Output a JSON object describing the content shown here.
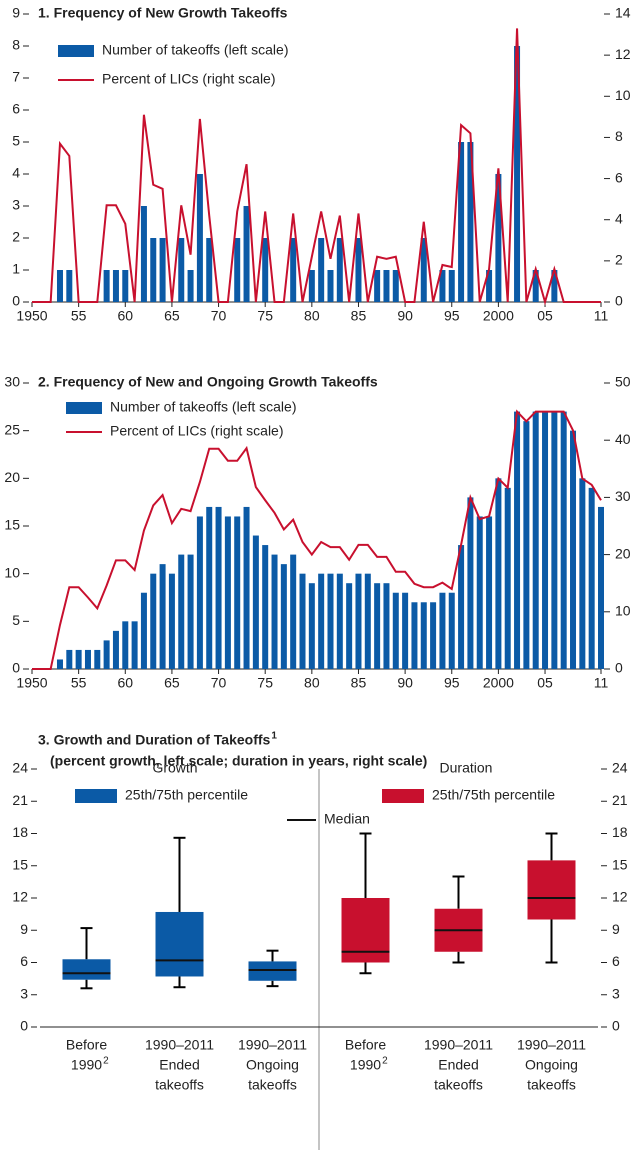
{
  "chart_data": [
    {
      "type": "combo",
      "title": "1. Frequency of New Growth Takeoffs",
      "x": [
        1950,
        1951,
        1952,
        1953,
        1954,
        1955,
        1956,
        1957,
        1958,
        1959,
        1960,
        1961,
        1962,
        1963,
        1964,
        1965,
        1966,
        1967,
        1968,
        1969,
        1970,
        1971,
        1972,
        1973,
        1974,
        1975,
        1976,
        1977,
        1978,
        1979,
        1980,
        1981,
        1982,
        1983,
        1984,
        1985,
        1986,
        1987,
        1988,
        1989,
        1990,
        1991,
        1992,
        1993,
        1994,
        1995,
        1996,
        1997,
        1998,
        1999,
        2000,
        2001,
        2002,
        2003,
        2004,
        2005,
        2006,
        2007,
        2008,
        2009,
        2010,
        2011
      ],
      "xlim": [
        1950,
        2011
      ],
      "xticks": [
        1950,
        {
          "value": 1955,
          "label": "55"
        },
        {
          "value": 1960,
          "label": "60"
        },
        {
          "value": 1965,
          "label": "65"
        },
        {
          "value": 1970,
          "label": "70"
        },
        {
          "value": 1975,
          "label": "75"
        },
        {
          "value": 1980,
          "label": "80"
        },
        {
          "value": 1985,
          "label": "85"
        },
        {
          "value": 1990,
          "label": "90"
        },
        {
          "value": 1995,
          "label": "95"
        },
        2000,
        {
          "value": 2005,
          "label": "05"
        },
        {
          "value": 2011,
          "label": "11"
        }
      ],
      "ylim": [
        0,
        9
      ],
      "yticks": [
        0,
        1,
        2,
        3,
        4,
        5,
        6,
        7,
        8,
        9
      ],
      "y2lim": [
        0,
        14
      ],
      "y2ticks": [
        0,
        2,
        4,
        6,
        8,
        10,
        12,
        14
      ],
      "legend": "upper left",
      "series": [
        {
          "name": "Number of takeoffs (left scale)",
          "color": "#0b5aa6",
          "type": "bar",
          "axis": "y",
          "values": [
            0,
            0,
            0,
            1,
            1,
            0,
            0,
            0,
            1,
            1,
            1,
            0,
            3,
            2,
            2,
            0,
            2,
            1,
            4,
            2,
            0,
            0,
            2,
            3,
            0,
            2,
            0,
            0,
            2,
            0,
            1,
            2,
            1,
            2,
            0,
            2,
            0,
            1,
            1,
            1,
            0,
            0,
            2,
            0,
            1,
            1,
            5,
            5,
            0,
            1,
            4,
            0,
            8,
            0,
            1,
            0,
            1,
            0,
            0,
            0,
            0,
            0
          ]
        },
        {
          "name": "Percent of LICs (right scale)",
          "color": "#c8102e",
          "type": "line",
          "axis": "y2",
          "values": [
            0,
            0,
            0,
            7.7,
            7.1,
            0,
            0,
            0,
            4.7,
            4.7,
            3.8,
            0,
            9.1,
            5.7,
            5.5,
            0,
            4.7,
            2.3,
            8.9,
            4.2,
            0,
            0,
            4.4,
            6.7,
            0,
            4.4,
            0,
            0,
            4.3,
            0,
            2.2,
            4.4,
            2.1,
            4.2,
            0,
            4.3,
            0,
            2.2,
            2.1,
            2.2,
            0,
            0,
            3.9,
            0,
            1.8,
            1.7,
            8.6,
            8.2,
            0,
            1.6,
            6.5,
            0,
            13.3,
            0,
            1.6,
            0,
            1.6,
            0,
            0,
            0,
            0,
            0
          ]
        }
      ]
    },
    {
      "type": "combo",
      "title": "2. Frequency of New and Ongoing Growth Takeoffs",
      "x": [
        1950,
        1951,
        1952,
        1953,
        1954,
        1955,
        1956,
        1957,
        1958,
        1959,
        1960,
        1961,
        1962,
        1963,
        1964,
        1965,
        1966,
        1967,
        1968,
        1969,
        1970,
        1971,
        1972,
        1973,
        1974,
        1975,
        1976,
        1977,
        1978,
        1979,
        1980,
        1981,
        1982,
        1983,
        1984,
        1985,
        1986,
        1987,
        1988,
        1989,
        1990,
        1991,
        1992,
        1993,
        1994,
        1995,
        1996,
        1997,
        1998,
        1999,
        2000,
        2001,
        2002,
        2003,
        2004,
        2005,
        2006,
        2007,
        2008,
        2009,
        2010,
        2011
      ],
      "xlim": [
        1950,
        2011
      ],
      "xticks": [
        1950,
        {
          "value": 1955,
          "label": "55"
        },
        {
          "value": 1960,
          "label": "60"
        },
        {
          "value": 1965,
          "label": "65"
        },
        {
          "value": 1970,
          "label": "70"
        },
        {
          "value": 1975,
          "label": "75"
        },
        {
          "value": 1980,
          "label": "80"
        },
        {
          "value": 1985,
          "label": "85"
        },
        {
          "value": 1990,
          "label": "90"
        },
        {
          "value": 1995,
          "label": "95"
        },
        2000,
        {
          "value": 2005,
          "label": "05"
        },
        {
          "value": 2011,
          "label": "11"
        }
      ],
      "ylim": [
        0,
        30
      ],
      "yticks": [
        0,
        5,
        10,
        15,
        20,
        25,
        30
      ],
      "y2lim": [
        0,
        50
      ],
      "y2ticks": [
        0,
        10,
        20,
        30,
        40,
        50
      ],
      "legend": "upper left",
      "series": [
        {
          "name": "Number of takeoffs (left scale)",
          "color": "#0b5aa6",
          "type": "bar",
          "axis": "y",
          "values": [
            0,
            0,
            0,
            1,
            2,
            2,
            2,
            2,
            3,
            4,
            5,
            5,
            8,
            10,
            11,
            10,
            12,
            12,
            16,
            17,
            17,
            16,
            16,
            17,
            14,
            13,
            12,
            11,
            12,
            10,
            9,
            10,
            10,
            10,
            9,
            10,
            10,
            9,
            9,
            8,
            8,
            7,
            7,
            7,
            8,
            8,
            13,
            18,
            16,
            16,
            20,
            19,
            27,
            26,
            27,
            27,
            27,
            27,
            25,
            20,
            19,
            17
          ]
        },
        {
          "name": "Percent of LICs (right scale)",
          "color": "#c8102e",
          "type": "line",
          "axis": "y2",
          "values": [
            0,
            0,
            0,
            7.7,
            14.3,
            14.3,
            12.5,
            10.6,
            14.6,
            19.0,
            19.0,
            17.3,
            24.2,
            28.6,
            30.4,
            25.5,
            28.0,
            27.6,
            32.7,
            38.5,
            38.5,
            36.4,
            36.4,
            38.6,
            31.8,
            29.5,
            27.3,
            24.4,
            26.1,
            22.2,
            20.0,
            22.2,
            21.3,
            21.3,
            19.1,
            21.7,
            21.7,
            19.6,
            19.6,
            17.0,
            17.0,
            14.9,
            14.3,
            14.3,
            15.1,
            14.0,
            21.7,
            30.0,
            26.2,
            26.7,
            33.3,
            31.7,
            45.0,
            43.3,
            45.0,
            45.0,
            45.0,
            45.0,
            41.7,
            33.3,
            32.2,
            29.5
          ]
        }
      ]
    },
    {
      "type": "box",
      "title": "3. Growth and Duration of Takeoffs",
      "title_note": "1",
      "subtitle": "(percent growth, left scale; duration in years, right scale)",
      "ylim": [
        0,
        24
      ],
      "yticks": [
        0,
        3,
        6,
        9,
        12,
        15,
        18,
        21,
        24
      ],
      "y2lim": [
        0,
        24
      ],
      "y2ticks": [
        0,
        3,
        6,
        9,
        12,
        15,
        18,
        21,
        24
      ],
      "median_label": "Median",
      "groups": [
        {
          "name": "Growth",
          "legend": "25th/75th percentile",
          "color": "#0b5aa6",
          "axis": "y",
          "boxes": [
            {
              "lines": [
                "Before",
                "1990"
              ],
              "note": "2",
              "whisker_low": 3.6,
              "q1": 4.4,
              "median": 5.0,
              "q3": 6.3,
              "whisker_high": 9.2
            },
            {
              "lines": [
                "1990–2011",
                "Ended",
                "takeoffs"
              ],
              "whisker_low": 3.7,
              "q1": 4.7,
              "median": 6.2,
              "q3": 10.7,
              "whisker_high": 17.6
            },
            {
              "lines": [
                "1990–2011",
                "Ongoing",
                "takeoffs"
              ],
              "whisker_low": 3.8,
              "q1": 4.3,
              "median": 5.3,
              "q3": 6.1,
              "whisker_high": 7.1
            }
          ]
        },
        {
          "name": "Duration",
          "legend": "25th/75th percentile",
          "color": "#c8102e",
          "axis": "y2",
          "boxes": [
            {
              "lines": [
                "Before",
                "1990"
              ],
              "note": "2",
              "whisker_low": 5,
              "q1": 6,
              "median": 7,
              "q3": 12,
              "whisker_high": 18
            },
            {
              "lines": [
                "1990–2011",
                "Ended",
                "takeoffs"
              ],
              "whisker_low": 6,
              "q1": 7,
              "median": 9,
              "q3": 11,
              "whisker_high": 14
            },
            {
              "lines": [
                "1990–2011",
                "Ongoing",
                "takeoffs"
              ],
              "whisker_low": 6,
              "q1": 10,
              "median": 12,
              "q3": 15.5,
              "whisker_high": 18
            }
          ]
        }
      ]
    }
  ]
}
